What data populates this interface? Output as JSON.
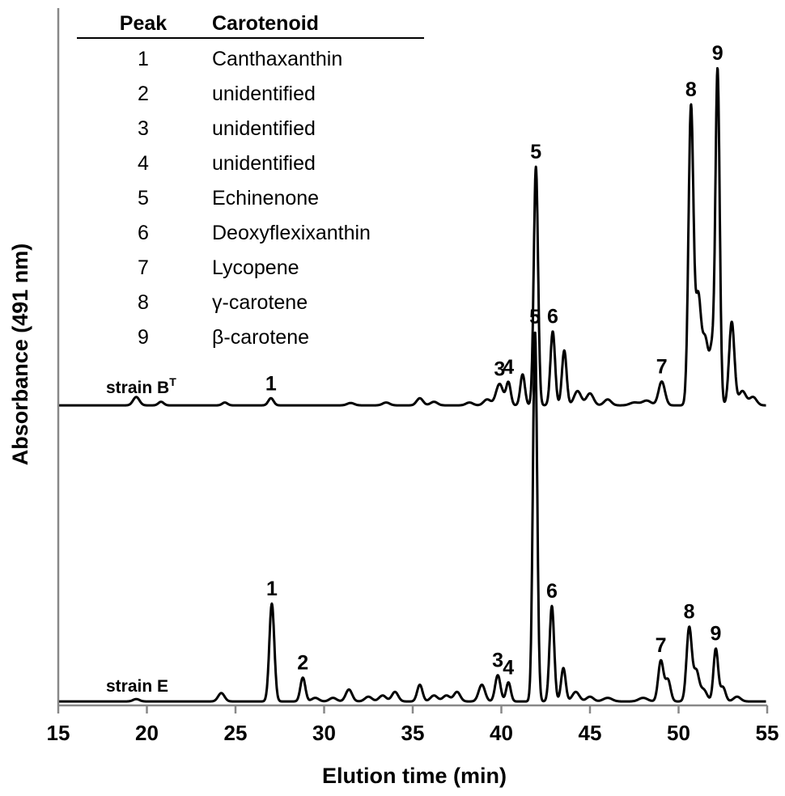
{
  "chart_data": {
    "type": "line",
    "xlabel": "Elution time (min)",
    "ylabel": "Absorbance (491 nm)",
    "xlim": [
      15,
      55
    ],
    "x_ticks": [
      15,
      20,
      25,
      30,
      35,
      40,
      45,
      50,
      55
    ],
    "grid": false,
    "legend_table": {
      "headers": [
        "Peak",
        "Carotenoid"
      ],
      "rows": [
        [
          "1",
          "Canthaxanthin"
        ],
        [
          "2",
          "unidentified"
        ],
        [
          "3",
          "unidentified"
        ],
        [
          "4",
          "unidentified"
        ],
        [
          "5",
          "Echinenone"
        ],
        [
          "6",
          "Deoxyflexixanthin"
        ],
        [
          "7",
          "Lycopene"
        ],
        [
          "8",
          "γ-carotene"
        ],
        [
          "9",
          "β-carotene"
        ]
      ]
    },
    "series": [
      {
        "name": "strain B",
        "name_superscript": "T",
        "baseline": 0.02,
        "peaks": [
          {
            "x": 19.4,
            "h": 0.035,
            "w": 0.18
          },
          {
            "x": 20.8,
            "h": 0.015,
            "w": 0.15
          },
          {
            "x": 24.4,
            "h": 0.012,
            "w": 0.15
          },
          {
            "x": 27.0,
            "h": 0.03,
            "w": 0.15,
            "label": "1"
          },
          {
            "x": 31.5,
            "h": 0.01,
            "w": 0.2
          },
          {
            "x": 33.5,
            "h": 0.012,
            "w": 0.2
          },
          {
            "x": 35.4,
            "h": 0.03,
            "w": 0.18
          },
          {
            "x": 36.2,
            "h": 0.015,
            "w": 0.2
          },
          {
            "x": 38.2,
            "h": 0.012,
            "w": 0.2
          },
          {
            "x": 39.2,
            "h": 0.025,
            "w": 0.2
          },
          {
            "x": 39.9,
            "h": 0.09,
            "w": 0.2,
            "label": "3"
          },
          {
            "x": 40.4,
            "h": 0.095,
            "w": 0.13,
            "label": "4"
          },
          {
            "x": 41.2,
            "h": 0.13,
            "w": 0.13
          },
          {
            "x": 41.95,
            "h": 1.0,
            "w": 0.12,
            "label": "5"
          },
          {
            "x": 42.9,
            "h": 0.31,
            "w": 0.13,
            "label": "6"
          },
          {
            "x": 43.55,
            "h": 0.23,
            "w": 0.13
          },
          {
            "x": 44.3,
            "h": 0.06,
            "w": 0.2
          },
          {
            "x": 45.0,
            "h": 0.05,
            "w": 0.2
          },
          {
            "x": 46.0,
            "h": 0.025,
            "w": 0.2
          },
          {
            "x": 47.5,
            "h": 0.012,
            "w": 0.25
          },
          {
            "x": 48.2,
            "h": 0.02,
            "w": 0.25
          },
          {
            "x": 49.05,
            "h": 0.1,
            "w": 0.18,
            "label": "7"
          },
          {
            "x": 50.7,
            "h": 1.25,
            "w": 0.14,
            "label": "8"
          },
          {
            "x": 51.1,
            "h": 0.42,
            "w": 0.15
          },
          {
            "x": 51.5,
            "h": 0.28,
            "w": 0.2
          },
          {
            "x": 51.9,
            "h": 0.2,
            "w": 0.13
          },
          {
            "x": 52.2,
            "h": 1.4,
            "w": 0.12,
            "label": "9"
          },
          {
            "x": 53.0,
            "h": 0.35,
            "w": 0.15
          },
          {
            "x": 53.6,
            "h": 0.06,
            "w": 0.2
          },
          {
            "x": 54.2,
            "h": 0.035,
            "w": 0.2
          }
        ]
      },
      {
        "name": "strain E",
        "baseline": 0.02,
        "peaks": [
          {
            "x": 19.4,
            "h": 0.01,
            "w": 0.18
          },
          {
            "x": 24.2,
            "h": 0.035,
            "w": 0.18
          },
          {
            "x": 27.05,
            "h": 0.41,
            "w": 0.14,
            "label": "1"
          },
          {
            "x": 28.8,
            "h": 0.1,
            "w": 0.14,
            "label": "2"
          },
          {
            "x": 29.5,
            "h": 0.015,
            "w": 0.2
          },
          {
            "x": 30.5,
            "h": 0.015,
            "w": 0.2
          },
          {
            "x": 31.4,
            "h": 0.05,
            "w": 0.18
          },
          {
            "x": 32.5,
            "h": 0.02,
            "w": 0.2
          },
          {
            "x": 33.3,
            "h": 0.025,
            "w": 0.2
          },
          {
            "x": 34.0,
            "h": 0.04,
            "w": 0.18
          },
          {
            "x": 35.4,
            "h": 0.07,
            "w": 0.15
          },
          {
            "x": 36.2,
            "h": 0.025,
            "w": 0.2
          },
          {
            "x": 36.9,
            "h": 0.025,
            "w": 0.2
          },
          {
            "x": 37.5,
            "h": 0.04,
            "w": 0.18
          },
          {
            "x": 38.9,
            "h": 0.07,
            "w": 0.18
          },
          {
            "x": 39.8,
            "h": 0.11,
            "w": 0.15,
            "label": "3"
          },
          {
            "x": 40.4,
            "h": 0.08,
            "w": 0.13,
            "label": "4"
          },
          {
            "x": 41.9,
            "h": 1.55,
            "w": 0.12,
            "label": "5"
          },
          {
            "x": 42.85,
            "h": 0.4,
            "w": 0.13,
            "label": "6"
          },
          {
            "x": 43.5,
            "h": 0.14,
            "w": 0.13
          },
          {
            "x": 44.2,
            "h": 0.04,
            "w": 0.2
          },
          {
            "x": 45.0,
            "h": 0.02,
            "w": 0.2
          },
          {
            "x": 46.0,
            "h": 0.015,
            "w": 0.25
          },
          {
            "x": 48.0,
            "h": 0.015,
            "w": 0.25
          },
          {
            "x": 49.0,
            "h": 0.17,
            "w": 0.15,
            "label": "7"
          },
          {
            "x": 49.4,
            "h": 0.09,
            "w": 0.15
          },
          {
            "x": 50.6,
            "h": 0.31,
            "w": 0.15,
            "label": "8"
          },
          {
            "x": 51.0,
            "h": 0.12,
            "w": 0.15
          },
          {
            "x": 51.4,
            "h": 0.05,
            "w": 0.2
          },
          {
            "x": 52.1,
            "h": 0.22,
            "w": 0.13,
            "label": "9"
          },
          {
            "x": 52.5,
            "h": 0.06,
            "w": 0.15
          },
          {
            "x": 53.3,
            "h": 0.02,
            "w": 0.2
          }
        ]
      }
    ]
  }
}
